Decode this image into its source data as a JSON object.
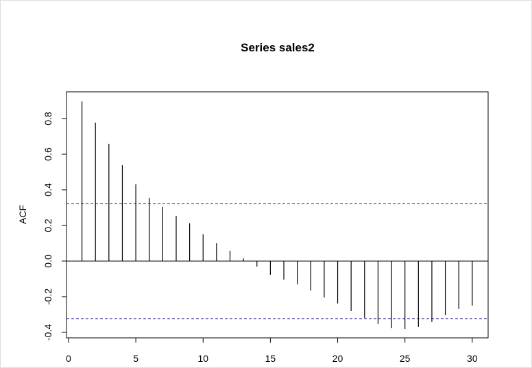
{
  "chart_data": {
    "type": "acf",
    "title": "Series sales2",
    "y_label": "ACF",
    "x": [
      1,
      2,
      3,
      4,
      5,
      6,
      7,
      8,
      9,
      10,
      11,
      12,
      13,
      14,
      15,
      16,
      17,
      18,
      19,
      20,
      21,
      22,
      23,
      24,
      25,
      26,
      27,
      28,
      29,
      30
    ],
    "values": [
      0.896,
      0.777,
      0.658,
      0.538,
      0.431,
      0.354,
      0.304,
      0.254,
      0.212,
      0.15,
      0.1,
      0.058,
      0.015,
      -0.031,
      -0.077,
      -0.104,
      -0.131,
      -0.165,
      -0.204,
      -0.238,
      -0.281,
      -0.319,
      -0.354,
      -0.377,
      -0.381,
      -0.369,
      -0.342,
      -0.304,
      -0.269,
      -0.25
    ],
    "color": "#000000",
    "ci_lines": [
      0.323,
      -0.323
    ],
    "ci_color": "#1a1a8c",
    "xlim": [
      -0.15,
      31.18
    ],
    "xticks": [
      0,
      5,
      10,
      15,
      20,
      25,
      30
    ],
    "ylim": [
      -0.431,
      0.95
    ],
    "yticks": [
      -0.4,
      -0.2,
      {
        "value": 0,
        "label": "0.0"
      },
      0.2,
      0.4,
      0.6,
      0.8
    ]
  }
}
